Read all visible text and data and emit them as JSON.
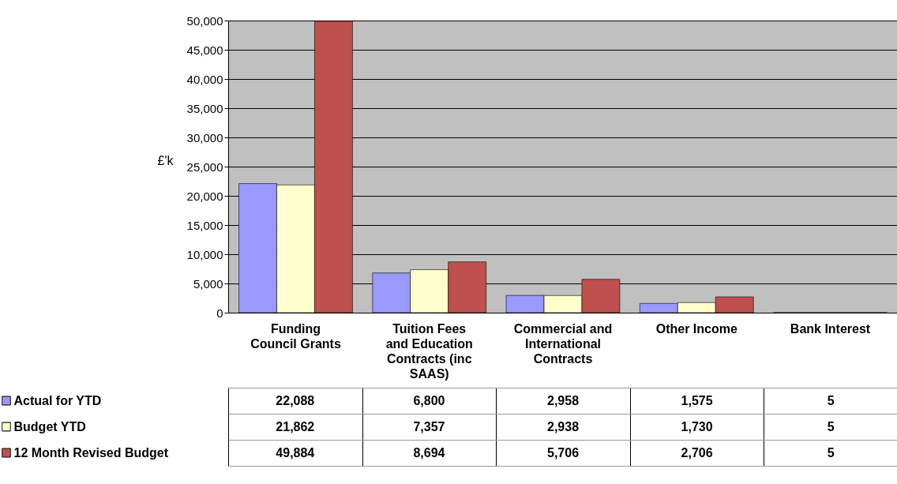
{
  "chart_data": {
    "type": "bar",
    "ylabel": "£'k",
    "categories": [
      "Funding Council Grants",
      "Tuition Fees and Education Contracts (inc SAAS)",
      "Commercial and International Contracts",
      "Other Income",
      "Bank Interest"
    ],
    "series": [
      {
        "name": "Actual for YTD",
        "color": "#9999ff",
        "values": [
          22088,
          6800,
          2958,
          1575,
          5
        ],
        "value_labels": [
          "22,088",
          "6,800",
          "2,958",
          "1,575",
          "5"
        ]
      },
      {
        "name": "Budget YTD",
        "color": "#ffffcc",
        "values": [
          21862,
          7357,
          2938,
          1730,
          5
        ],
        "value_labels": [
          "21,862",
          "7,357",
          "2,938",
          "1,730",
          "5"
        ]
      },
      {
        "name": "12 Month Revised Budget",
        "color": "#c0504d",
        "values": [
          49884,
          8694,
          5706,
          2706,
          5
        ],
        "value_labels": [
          "49,884",
          "8,694",
          "5,706",
          "2,706",
          "5"
        ]
      }
    ],
    "ylim": [
      0,
      50000
    ],
    "yticks": [
      0,
      {
        "value": 5000,
        "label": "5,000"
      },
      {
        "value": 10000,
        "label": "10,000"
      },
      {
        "value": 15000,
        "label": "15,000"
      },
      {
        "value": 20000,
        "label": "20,000"
      },
      {
        "value": 25000,
        "label": "25,000"
      },
      {
        "value": 30000,
        "label": "30,000"
      },
      {
        "value": 35000,
        "label": "35,000"
      },
      {
        "value": 40000,
        "label": "40,000"
      },
      {
        "value": 45000,
        "label": "45,000"
      },
      {
        "value": 50000,
        "label": "50,000"
      }
    ],
    "grid": "y",
    "legend": "bottom left"
  }
}
